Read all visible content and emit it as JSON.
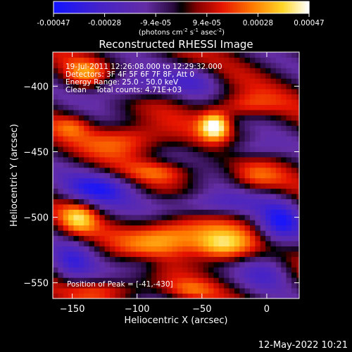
{
  "chart_data": {
    "type": "heatmap",
    "title": "Reconstructed RHESSI Image",
    "xlabel": "Heliocentric X (arcsec)",
    "ylabel": "Heliocentric Y (arcsec)",
    "xlim": [
      -165,
      25
    ],
    "ylim": [
      -562,
      -374
    ],
    "x_ticks": [
      -150,
      -100,
      -50,
      0
    ],
    "y_ticks": [
      -400,
      -450,
      -500,
      -550
    ],
    "colorbar": {
      "range": [
        -0.00047,
        0.00047
      ],
      "tick_labels": [
        "-0.00047",
        "-0.00028",
        "-9.4e-05",
        "9.4e-05",
        "0.00028",
        "0.00047"
      ],
      "unit_prefix": "(photons cm",
      "unit_sup1": "-2",
      "unit_mid": " s",
      "unit_sup2": "-1",
      "unit_suffix": " asec",
      "unit_sup3": "-2",
      "unit_close": ")"
    },
    "annotations": {
      "time": "19-Jul-2011 12:26:08.000 to 12:29:32.000",
      "detectors": "Detectors: 3F 4F 5F 6F 7F 8F, Att 0",
      "energy": "Energy Range: 25.0 - 50.0 keV",
      "clean": "Clean    Total counts: 4.71E+03",
      "peak": "Position of Peak = [-41,-430]"
    },
    "peak_position": [
      -41,
      -430
    ],
    "sources": [
      {
        "x": -40,
        "y": -430,
        "amp": 0.00047,
        "sx": 8,
        "sy": 7
      },
      {
        "x": -75,
        "y": -515,
        "amp": 0.0004,
        "sx": 22,
        "sy": 10
      },
      {
        "x": -35,
        "y": -522,
        "amp": 0.00038,
        "sx": 16,
        "sy": 9
      },
      {
        "x": -145,
        "y": -500,
        "amp": 0.0003,
        "sx": 10,
        "sy": 9
      },
      {
        "x": -105,
        "y": -440,
        "amp": 0.00028,
        "sx": 22,
        "sy": 9
      },
      {
        "x": -20,
        "y": -415,
        "amp": 0.00024,
        "sx": 18,
        "sy": 7
      },
      {
        "x": -140,
        "y": -392,
        "amp": 0.00026,
        "sx": 12,
        "sy": 8
      },
      {
        "x": -80,
        "y": -465,
        "amp": 0.0002,
        "sx": 20,
        "sy": 6
      },
      {
        "x": -10,
        "y": -470,
        "amp": 0.00018,
        "sx": 14,
        "sy": 7
      },
      {
        "x": -120,
        "y": -555,
        "amp": 0.0002,
        "sx": 22,
        "sy": 6
      },
      {
        "x": -150,
        "y": -430,
        "amp": 0.00016,
        "sx": 10,
        "sy": 6
      },
      {
        "x": -60,
        "y": -555,
        "amp": 0.00014,
        "sx": 14,
        "sy": 5
      },
      {
        "x": -110,
        "y": -400,
        "amp": -0.0003,
        "sx": 22,
        "sy": 8
      },
      {
        "x": -130,
        "y": -478,
        "amp": -0.00032,
        "sx": 22,
        "sy": 9
      },
      {
        "x": -50,
        "y": -490,
        "amp": -0.00028,
        "sx": 28,
        "sy": 7
      },
      {
        "x": 10,
        "y": -505,
        "amp": -0.00034,
        "sx": 12,
        "sy": 12
      },
      {
        "x": -150,
        "y": -535,
        "amp": -0.00024,
        "sx": 12,
        "sy": 12
      },
      {
        "x": 0,
        "y": -540,
        "amp": -0.00022,
        "sx": 14,
        "sy": 10
      },
      {
        "x": -55,
        "y": -395,
        "amp": -0.00018,
        "sx": 14,
        "sy": 8
      },
      {
        "x": -15,
        "y": -448,
        "amp": -0.0002,
        "sx": 16,
        "sy": 6
      },
      {
        "x": -95,
        "y": -535,
        "amp": -0.00016,
        "sx": 14,
        "sy": 6
      }
    ]
  },
  "footer": {
    "timestamp": "12-May-2022 10:21"
  }
}
